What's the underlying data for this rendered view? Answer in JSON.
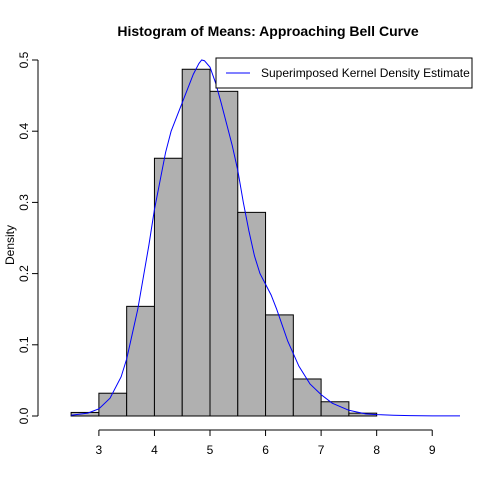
{
  "chart_data": {
    "type": "histogram",
    "title": "Histogram of Means: Approaching Bell Curve",
    "xlabel": "",
    "ylabel": "Density",
    "xlim": [
      2.3,
      9.5
    ],
    "ylim": [
      0,
      0.5
    ],
    "x_ticks": [
      3,
      4,
      5,
      6,
      7,
      8,
      9
    ],
    "y_ticks": [
      0.0,
      0.1,
      0.2,
      0.3,
      0.4,
      0.5
    ],
    "y_tick_labels": [
      "0.0",
      "0.1",
      "0.2",
      "0.3",
      "0.4",
      "0.5"
    ],
    "bar_color": "#b0b0b0",
    "bins": [
      {
        "x0": 2.5,
        "x1": 3.0,
        "density": 0.005
      },
      {
        "x0": 3.0,
        "x1": 3.5,
        "density": 0.032
      },
      {
        "x0": 3.5,
        "x1": 4.0,
        "density": 0.154
      },
      {
        "x0": 4.0,
        "x1": 4.5,
        "density": 0.362
      },
      {
        "x0": 4.5,
        "x1": 5.0,
        "density": 0.487
      },
      {
        "x0": 5.0,
        "x1": 5.5,
        "density": 0.456
      },
      {
        "x0": 5.5,
        "x1": 6.0,
        "density": 0.286
      },
      {
        "x0": 6.0,
        "x1": 6.5,
        "density": 0.142
      },
      {
        "x0": 6.5,
        "x1": 7.0,
        "density": 0.052
      },
      {
        "x0": 7.0,
        "x1": 7.5,
        "density": 0.02
      },
      {
        "x0": 7.5,
        "x1": 8.0,
        "density": 0.004
      }
    ],
    "series": [
      {
        "name": "Superimposed Kernel Density Estimate",
        "color": "#0000ff",
        "x": [
          2.5,
          2.8,
          3.0,
          3.2,
          3.4,
          3.5,
          3.6,
          3.7,
          3.8,
          3.9,
          4.0,
          4.1,
          4.2,
          4.3,
          4.4,
          4.5,
          4.6,
          4.7,
          4.8,
          4.85,
          4.9,
          5.0,
          5.1,
          5.2,
          5.3,
          5.4,
          5.5,
          5.6,
          5.7,
          5.8,
          5.9,
          6.0,
          6.1,
          6.2,
          6.4,
          6.6,
          6.8,
          7.0,
          7.2,
          7.5,
          7.8,
          8.0,
          8.3,
          8.6,
          9.0,
          9.5
        ],
        "y": [
          0.001,
          0.004,
          0.01,
          0.025,
          0.055,
          0.08,
          0.115,
          0.15,
          0.195,
          0.24,
          0.29,
          0.33,
          0.37,
          0.4,
          0.42,
          0.44,
          0.46,
          0.48,
          0.495,
          0.5,
          0.499,
          0.49,
          0.468,
          0.44,
          0.41,
          0.38,
          0.345,
          0.3,
          0.26,
          0.225,
          0.2,
          0.185,
          0.17,
          0.15,
          0.105,
          0.07,
          0.045,
          0.03,
          0.018,
          0.008,
          0.003,
          0.002,
          0.001,
          0.0005,
          0.0002,
          0.0001
        ]
      }
    ],
    "legend": {
      "position": "top-right"
    }
  }
}
